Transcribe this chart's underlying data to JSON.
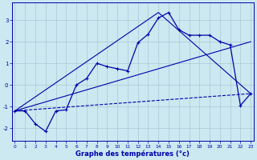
{
  "xlabel": "Graphe des températures (°c)",
  "background_color": "#cce8f0",
  "grid_color": "#aac8d8",
  "line_color": "#0000aa",
  "x_ticks": [
    0,
    1,
    2,
    3,
    4,
    5,
    6,
    7,
    8,
    9,
    10,
    11,
    12,
    13,
    14,
    15,
    16,
    17,
    18,
    19,
    20,
    21,
    22,
    23
  ],
  "y_ticks": [
    -2,
    -1,
    0,
    1,
    2,
    3
  ],
  "ylim": [
    -2.6,
    3.8
  ],
  "xlim": [
    -0.3,
    23.3
  ],
  "main_line": {
    "x": [
      0,
      1,
      2,
      3,
      4,
      5,
      6,
      7,
      8,
      9,
      10,
      11,
      12,
      13,
      14,
      15,
      16,
      17,
      18,
      19,
      20,
      21,
      22,
      23
    ],
    "y": [
      -1.2,
      -1.2,
      -1.8,
      -2.15,
      -1.2,
      -1.15,
      0.0,
      0.3,
      1.0,
      0.85,
      0.75,
      0.65,
      1.95,
      2.35,
      3.1,
      3.35,
      2.55,
      2.3,
      2.3,
      2.3,
      2.0,
      1.85,
      -0.95,
      -0.4
    ]
  },
  "line_triangle": {
    "x": [
      0,
      14,
      23
    ],
    "y": [
      -1.2,
      3.35,
      -0.4
    ]
  },
  "line_flat": {
    "x": [
      0,
      23
    ],
    "y": [
      -1.2,
      -0.4
    ]
  },
  "line_slope": {
    "x": [
      0,
      23
    ],
    "y": [
      -1.2,
      2.0
    ]
  }
}
